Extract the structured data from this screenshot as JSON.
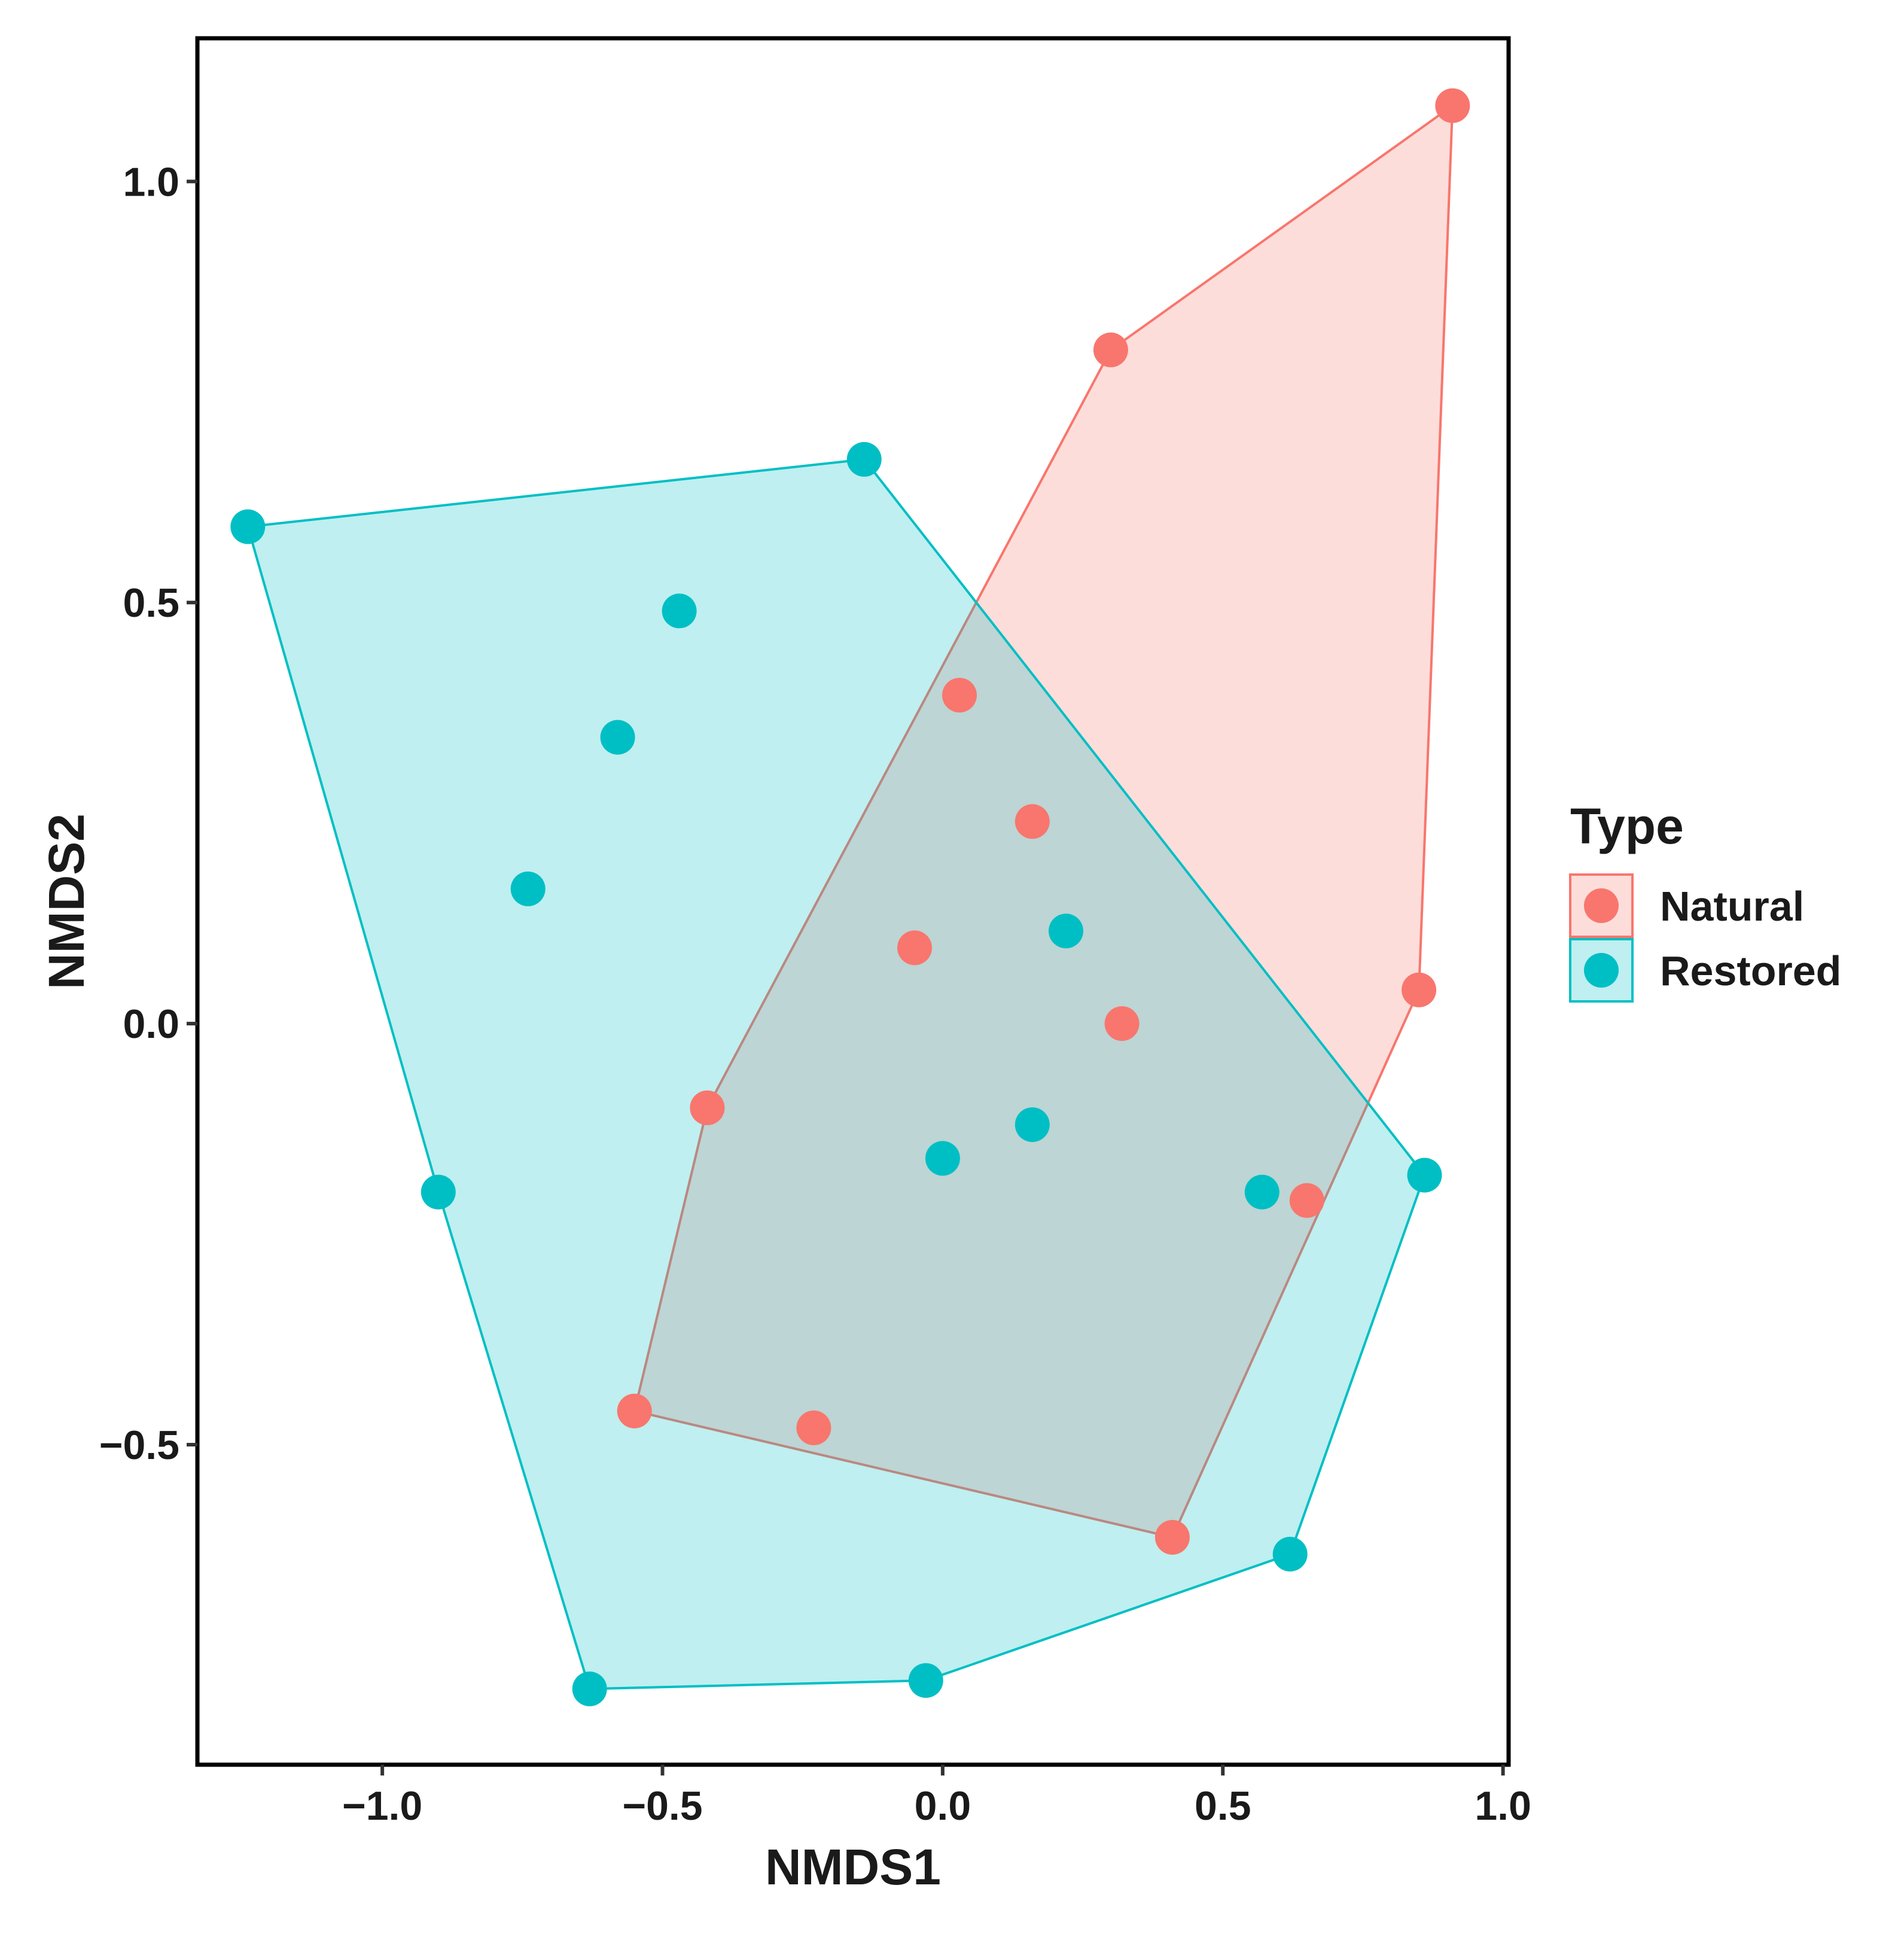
{
  "chart_data": {
    "type": "scatter",
    "title": "",
    "xlabel": "NMDS1",
    "ylabel": "NMDS2",
    "xlim": [
      -1.33,
      1.01
    ],
    "ylim": [
      -0.88,
      1.17
    ],
    "xticks": [
      {
        "value": -1.0,
        "label": "−1.0"
      },
      {
        "value": -0.5,
        "label": "−0.5"
      },
      {
        "value": 0.0,
        "label": "0.0"
      },
      {
        "value": 0.5,
        "label": "0.5"
      },
      {
        "value": 1.0,
        "label": "1.0"
      }
    ],
    "yticks": [
      {
        "value": -0.5,
        "label": "−0.5"
      },
      {
        "value": 0.0,
        "label": "0.0"
      },
      {
        "value": 0.5,
        "label": "0.5"
      },
      {
        "value": 1.0,
        "label": "1.0"
      }
    ],
    "grid": false,
    "legend": {
      "title": "Type",
      "position": "right"
    },
    "series": [
      {
        "name": "Natural",
        "color": "#F8766D",
        "fill": "#F8766D",
        "hull": [
          [
            0.91,
            1.09
          ],
          [
            0.3,
            0.8
          ],
          [
            -0.42,
            -0.1
          ],
          [
            -0.55,
            -0.46
          ],
          [
            0.41,
            -0.61
          ],
          [
            0.85,
            0.04
          ]
        ],
        "points": [
          [
            0.91,
            1.09
          ],
          [
            0.3,
            0.8
          ],
          [
            0.03,
            0.39
          ],
          [
            0.16,
            0.24
          ],
          [
            -0.05,
            0.09
          ],
          [
            0.32,
            0.0
          ],
          [
            0.85,
            0.04
          ],
          [
            -0.42,
            -0.1
          ],
          [
            0.65,
            -0.21
          ],
          [
            -0.55,
            -0.46
          ],
          [
            -0.23,
            -0.48
          ],
          [
            0.41,
            -0.61
          ]
        ]
      },
      {
        "name": "Restored",
        "color": "#00BFC4",
        "fill": "#00BFC4",
        "hull": [
          [
            -1.24,
            0.59
          ],
          [
            -0.14,
            0.67
          ],
          [
            0.86,
            -0.18
          ],
          [
            0.62,
            -0.63
          ],
          [
            -0.03,
            -0.78
          ],
          [
            -0.63,
            -0.79
          ],
          [
            -0.9,
            -0.2
          ]
        ],
        "points": [
          [
            -1.24,
            0.59
          ],
          [
            -0.14,
            0.67
          ],
          [
            -0.47,
            0.49
          ],
          [
            -0.58,
            0.34
          ],
          [
            -0.74,
            0.16
          ],
          [
            0.22,
            0.11
          ],
          [
            0.16,
            -0.12
          ],
          [
            0.0,
            -0.16
          ],
          [
            0.57,
            -0.2
          ],
          [
            0.86,
            -0.18
          ],
          [
            -0.9,
            -0.2
          ],
          [
            0.62,
            -0.63
          ],
          [
            -0.03,
            -0.78
          ],
          [
            -0.63,
            -0.79
          ]
        ]
      }
    ]
  }
}
